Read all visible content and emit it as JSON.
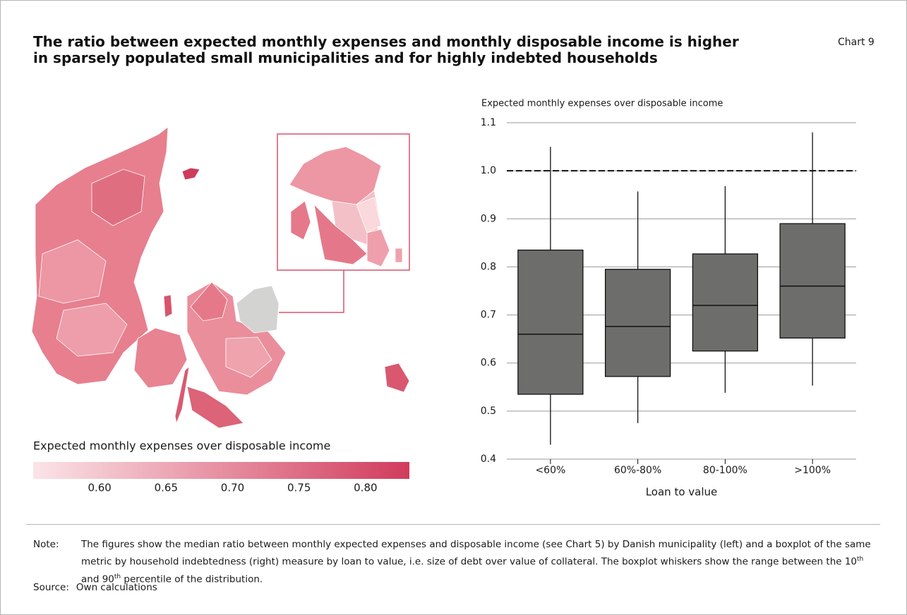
{
  "title": [
    "The ratio between expected monthly expenses and monthly disposable income is higher",
    "in sparsely populated small municipalities and for highly indebted households"
  ],
  "chart_label": "Chart 9",
  "chart_data": [
    {
      "type": "map",
      "title": "Expected monthly expenses over disposable income",
      "clim": [
        0.55,
        0.833
      ],
      "cticks": [
        {
          "value": 0.6,
          "label": "0.60"
        },
        0.65,
        {
          "value": 0.7,
          "label": "0.70"
        },
        0.75,
        {
          "value": 0.8,
          "label": "0.80"
        }
      ],
      "colors": [
        "#fbe4e7",
        "#d13b5c"
      ]
    },
    {
      "type": "boxplot",
      "ylabel": "Expected monthly expenses over disposable income",
      "xlabel": "Loan to value",
      "categories": [
        "<60%",
        "60%-80%",
        "80-100%",
        ">100%"
      ],
      "boxes": [
        {
          "low": 0.43,
          "q1": 0.535,
          "median": 0.66,
          "q3": 0.835,
          "high": 1.05
        },
        {
          "low": 0.475,
          "q1": 0.572,
          "median": 0.676,
          "q3": 0.795,
          "high": 0.957
        },
        {
          "low": 0.538,
          "q1": 0.625,
          "median": 0.72,
          "q3": 0.827,
          "high": 0.968
        },
        {
          "low": 0.553,
          "q1": 0.652,
          "median": 0.76,
          "q3": 0.89,
          "high": 1.08
        }
      ],
      "color": "#6d6e6b",
      "ylim": [
        0.4,
        1.1
      ],
      "yticks": [
        0.4,
        0.5,
        0.6,
        0.7,
        0.8,
        0.9,
        {
          "value": 1,
          "label": "1.0"
        },
        1.1
      ],
      "reference_line": 1,
      "grid": true
    }
  ],
  "note": {
    "label": "Note:",
    "text": [
      "The figures show the median ratio between monthly expected expenses and disposable income (see Chart 5) by Danish municipality (left) and a boxplot of the same metric by household indebtedness (right) measure by loan to value, i.e. size of debt over value of collateral. The boxplot whiskers show the range between the 10",
      "th",
      " and 90",
      "th",
      " percentile of the distribution."
    ]
  },
  "source": {
    "label": "Source:",
    "text": "Own calculations"
  }
}
